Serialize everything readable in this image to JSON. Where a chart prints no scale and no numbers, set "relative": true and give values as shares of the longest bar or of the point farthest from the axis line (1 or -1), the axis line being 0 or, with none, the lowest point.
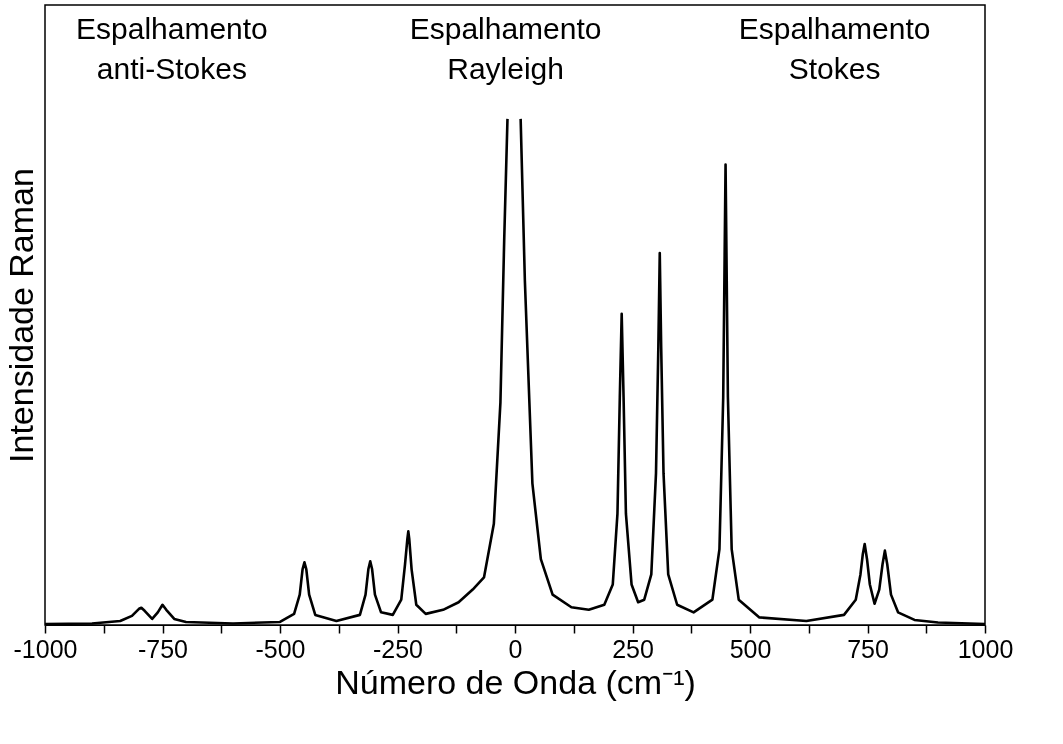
{
  "chart_data": {
    "type": "line",
    "relative": true,
    "xlabel": "Número de Onda (cm⁻¹)",
    "ylabel": "Intensidade Raman",
    "annotations": [
      "Espalhamento\nanti-Stokes",
      "Espalhamento\nRayleigh",
      "Espalhamento\nStokes"
    ],
    "xlim": [
      -1000,
      1000
    ],
    "xticks": [
      -1000,
      {
        "value": -875,
        "label": null
      },
      -750,
      {
        "value": -625,
        "label": null
      },
      -500,
      {
        "value": -375,
        "label": null
      },
      -250,
      {
        "value": -125,
        "label": null
      },
      0,
      {
        "value": 125,
        "label": null
      },
      250,
      {
        "value": 375,
        "label": null
      },
      500,
      {
        "value": 625,
        "label": null
      },
      750,
      {
        "value": 875,
        "label": null
      },
      1000
    ],
    "tick_labels": "x",
    "grid": false,
    "marker": "none",
    "line_style": "solid",
    "series": [
      {
        "color": "#000000",
        "x": [
          -1000,
          -900,
          -840,
          -815,
          -800,
          -795,
          -788,
          -772,
          -760,
          -750,
          -742,
          -725,
          -700,
          -600,
          -500,
          -470,
          -458,
          -452,
          -448,
          -444,
          -438,
          -425,
          -380,
          -330,
          -318,
          -312,
          -308,
          -304,
          -298,
          -285,
          -260,
          -242,
          -234,
          -229,
          -227,
          -225,
          -220,
          -210,
          -190,
          -153,
          -120,
          -90,
          -66,
          -45,
          -31,
          -23,
          -16,
          -4,
          12,
          21,
          37,
          55,
          80,
          120,
          157,
          190,
          208,
          218,
          223,
          227,
          231,
          236,
          248,
          262,
          275,
          290,
          300,
          305,
          308,
          311,
          316,
          326,
          345,
          380,
          420,
          435,
          443,
          448,
          453,
          461,
          476,
          520,
          620,
          700,
          725,
          735,
          740,
          744,
          749,
          755,
          765,
          775,
          782,
          787,
          792,
          800,
          815,
          850,
          900,
          1000
        ],
        "values": [
          0.002,
          0.003,
          0.008,
          0.018,
          0.032,
          0.034,
          0.028,
          0.012,
          0.025,
          0.04,
          0.03,
          0.012,
          0.006,
          0.003,
          0.006,
          0.022,
          0.06,
          0.11,
          0.124,
          0.11,
          0.06,
          0.02,
          0.008,
          0.02,
          0.06,
          0.11,
          0.126,
          0.11,
          0.06,
          0.025,
          0.02,
          0.05,
          0.12,
          0.17,
          0.185,
          0.17,
          0.11,
          0.04,
          0.022,
          0.03,
          0.045,
          0.07,
          0.094,
          0.2,
          0.44,
          0.76,
          1,
          null,
          1,
          0.68,
          0.28,
          0.13,
          0.06,
          0.035,
          0.03,
          0.04,
          0.08,
          0.22,
          0.45,
          0.615,
          0.45,
          0.22,
          0.08,
          0.045,
          0.05,
          0.1,
          0.3,
          0.55,
          0.735,
          0.55,
          0.3,
          0.1,
          0.04,
          0.025,
          0.05,
          0.15,
          0.45,
          0.91,
          0.45,
          0.15,
          0.05,
          0.015,
          0.008,
          0.02,
          0.05,
          0.1,
          0.14,
          0.16,
          0.13,
          0.08,
          0.042,
          0.07,
          0.12,
          0.147,
          0.12,
          0.06,
          0.025,
          0.01,
          0.005,
          0.002
        ]
      }
    ]
  }
}
